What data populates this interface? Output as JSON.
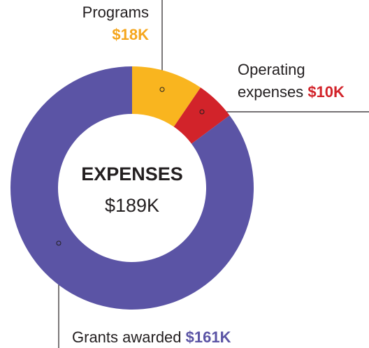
{
  "chart_data": {
    "type": "donut",
    "center_title": "EXPENSES",
    "center_label": "$189K",
    "categories": [
      "Programs",
      "Operating expenses",
      "Grants awarded"
    ],
    "values": [
      18,
      10,
      161
    ],
    "value_labels": [
      "$18K",
      "$10K",
      "$161K"
    ],
    "colors": [
      "#f9b51f",
      "#d2232a",
      "#5b54a5"
    ],
    "label_colors": [
      "#f5a61e",
      "#d2232a",
      "#5b54a5"
    ]
  }
}
